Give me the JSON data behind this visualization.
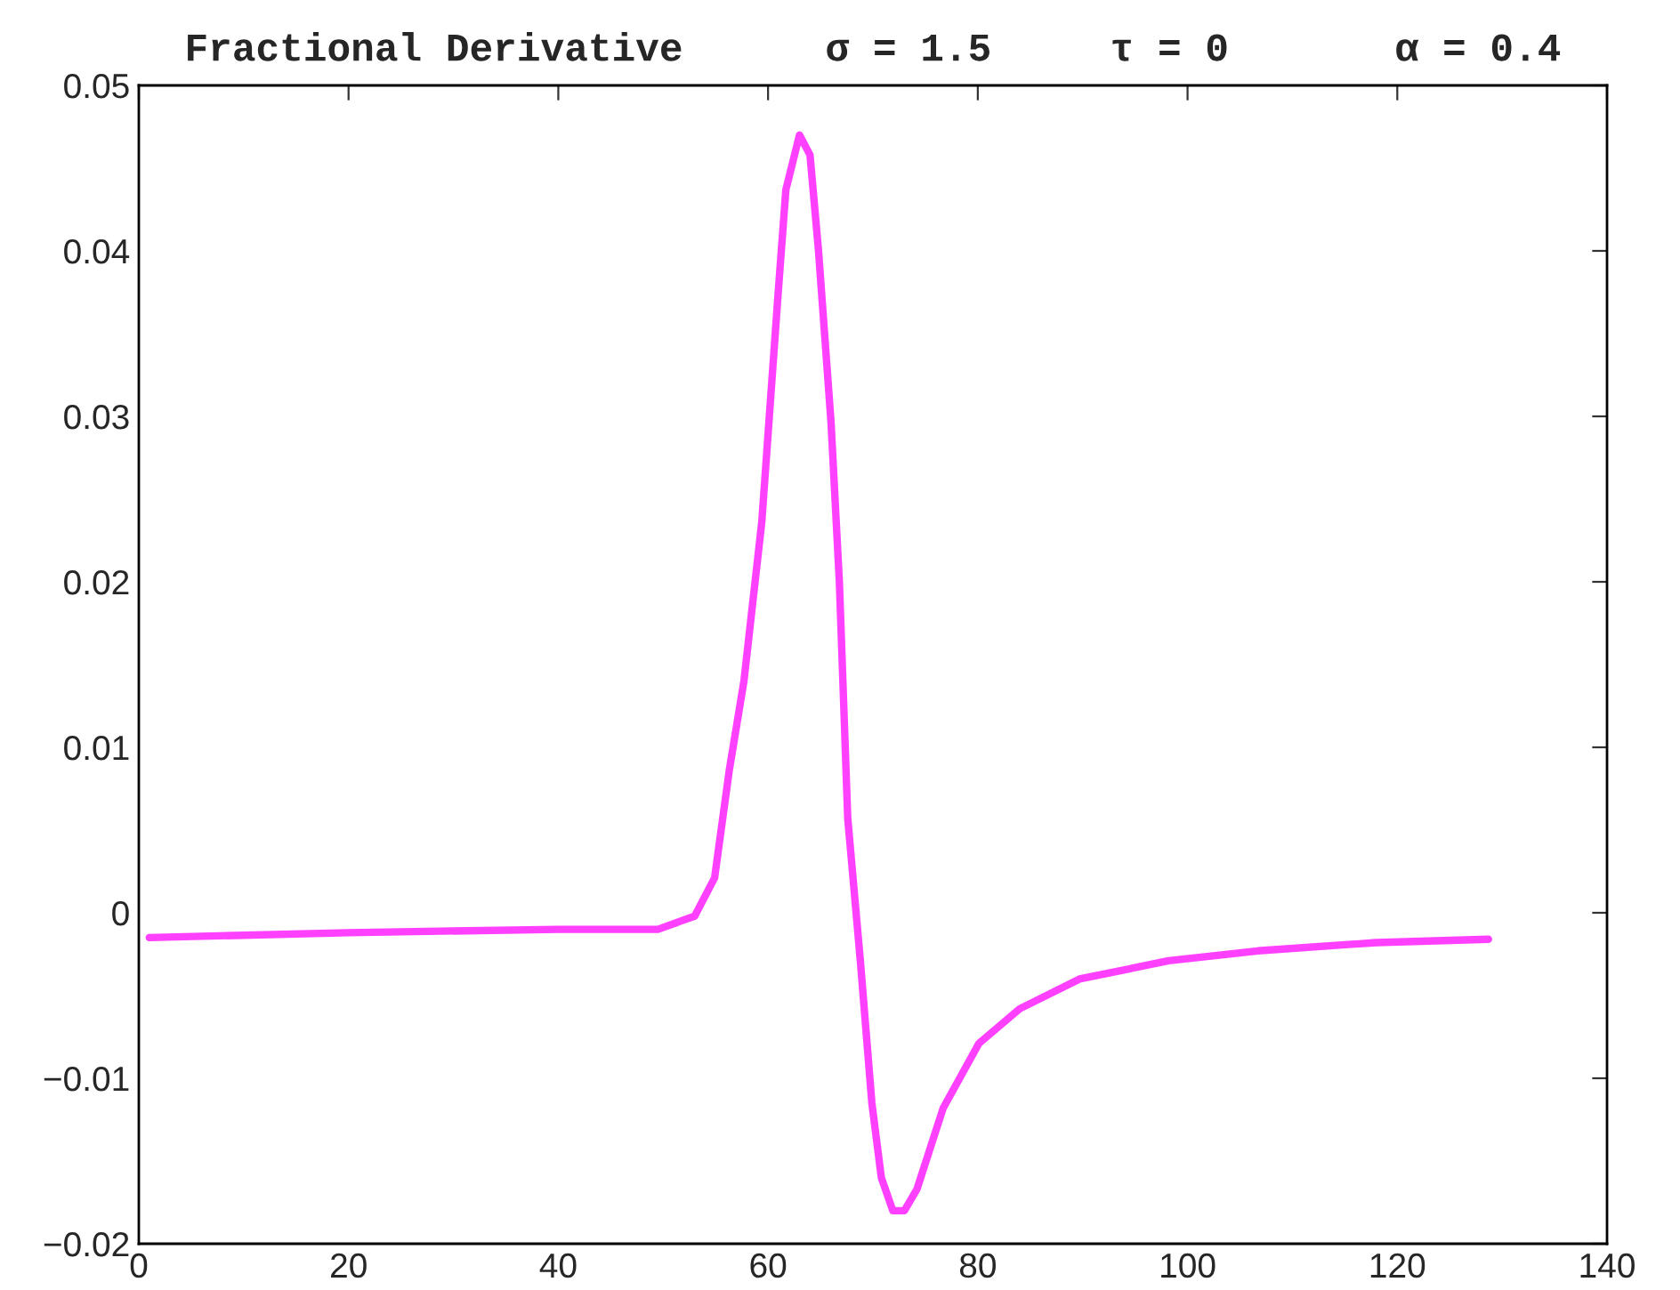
{
  "chart_data": {
    "type": "line",
    "title": "Fractional Derivative      σ = 1.5     τ = 0       α = 0.4",
    "series": [
      {
        "color": "#ff40ff",
        "x": [
          1,
          20,
          40,
          49.5,
          53,
          54.9,
          56.3,
          57.7,
          59.4,
          60.9,
          61.7,
          63,
          64,
          64.8,
          66,
          66.8,
          67.6,
          68.8,
          69.9,
          70.8,
          71.9,
          73,
          74.2,
          76.7,
          80.1,
          84,
          89.7,
          98.2,
          106.7,
          118,
          128.7
        ],
        "values": [
          -0.0015,
          -0.0012,
          -0.001,
          -0.001,
          -0.0002,
          0.0021,
          0.0086,
          0.014,
          0.0236,
          0.0369,
          0.0437,
          0.047,
          0.0458,
          0.0401,
          0.0297,
          0.02,
          0.0057,
          -0.0029,
          -0.0115,
          -0.016,
          -0.018,
          -0.018,
          -0.0167,
          -0.0118,
          -0.0079,
          -0.0058,
          -0.004,
          -0.0029,
          -0.0023,
          -0.0018,
          -0.0016
        ]
      }
    ],
    "xlim": [
      0,
      140
    ],
    "xticks": [
      0,
      20,
      40,
      60,
      80,
      100,
      120,
      140
    ],
    "ylim": [
      -0.02,
      0.05
    ],
    "yticks": [
      {
        "value": -0.02,
        "label": "−0.02"
      },
      {
        "value": -0.01,
        "label": "−0.01"
      },
      0,
      0.01,
      0.02,
      0.03,
      0.04,
      0.05
    ],
    "marker": "none",
    "line_style": "solid"
  }
}
